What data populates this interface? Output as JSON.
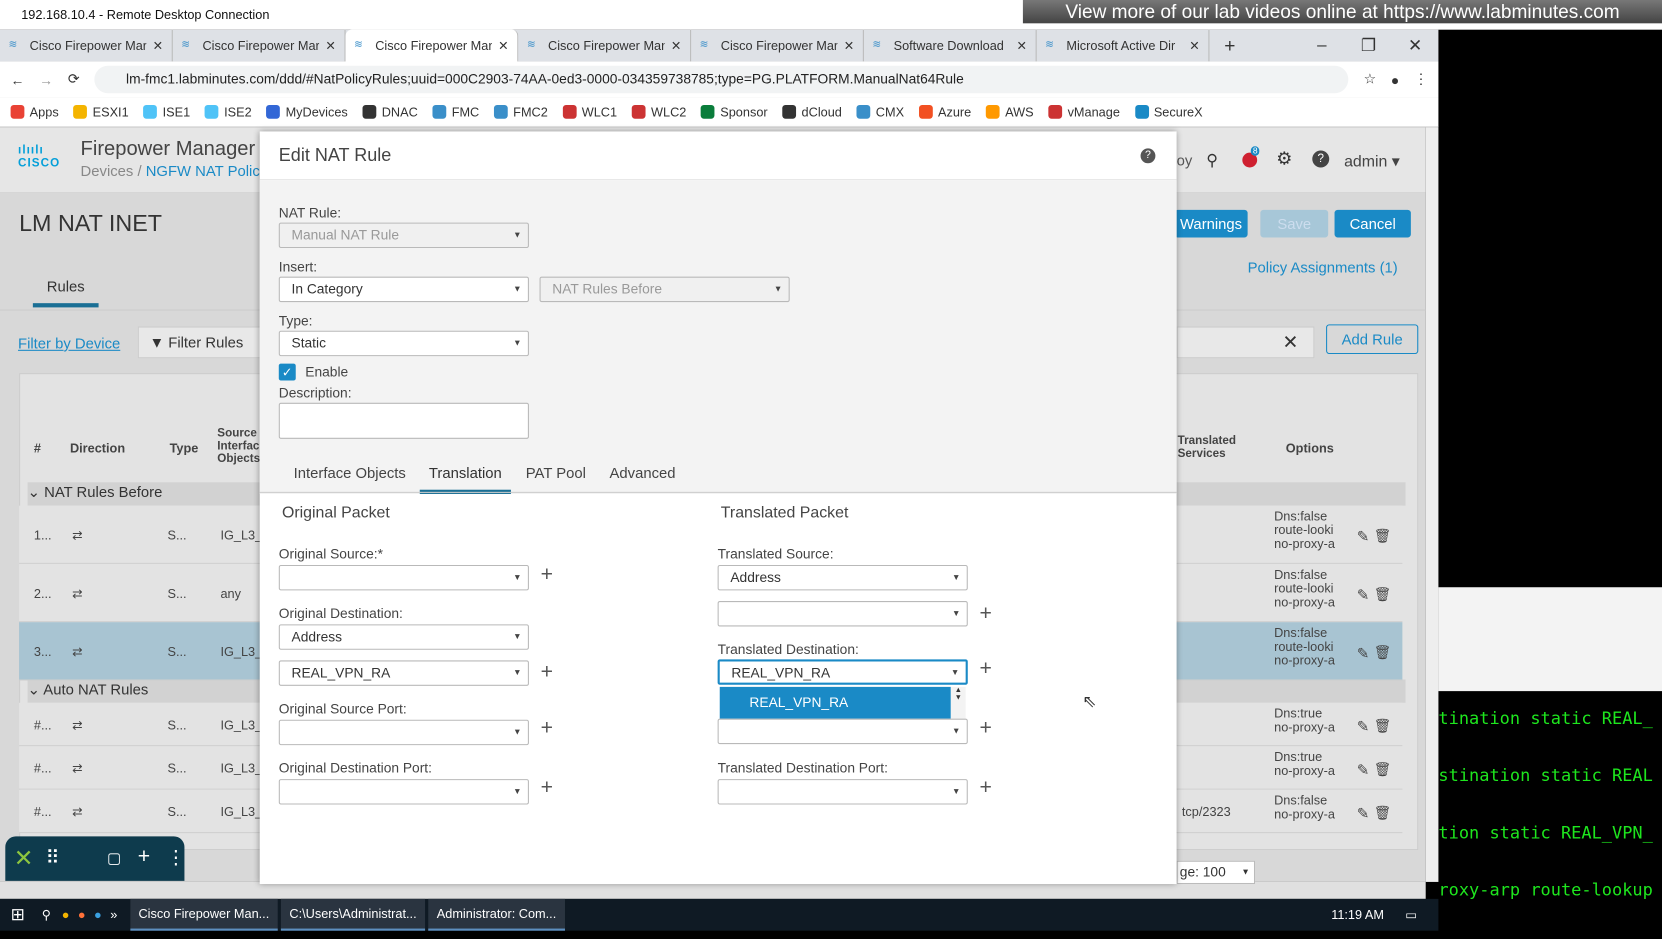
{
  "window": {
    "title": "192.168.10.4 - Remote Desktop Connection",
    "banner": "View more of our lab videos online at https://www.labminutes.com"
  },
  "browser": {
    "tabs": [
      {
        "label": "Cisco Firepower Mar"
      },
      {
        "label": "Cisco Firepower Mar"
      },
      {
        "label": "Cisco Firepower Mar",
        "active": true
      },
      {
        "label": "Cisco Firepower Mar"
      },
      {
        "label": "Cisco Firepower Mar"
      },
      {
        "label": "Software Download"
      },
      {
        "label": "Microsoft Active Dir"
      }
    ],
    "url": "lm-fmc1.labminutes.com/ddd/#NatPolicyRules;uuid=000C2903-74AA-0ed3-0000-034359738785;type=PG.PLATFORM.ManualNat64Rule",
    "bookmarks": [
      "Apps",
      "ESXI1",
      "ISE1",
      "ISE2",
      "MyDevices",
      "DNAC",
      "FMC",
      "FMC2",
      "WLC1",
      "WLC2",
      "Sponsor",
      "dCloud",
      "CMX",
      "Azure",
      "AWS",
      "vManage",
      "SecureX"
    ]
  },
  "fmc": {
    "brand": "cisco",
    "product": "Firepower Manager",
    "breadcrumb_root": "Devices /",
    "breadcrumb_page": "NGFW NAT Policy",
    "deploy_partial": "oy",
    "notif_count": "8",
    "user": "admin",
    "policy_name": "LM NAT INET",
    "tab_rules": "Rules",
    "filter_device": "Filter by Device",
    "filter_rules": "Filter Rules",
    "warnings": "Warnings",
    "save": "Save",
    "cancel": "Cancel",
    "policy_assignments": "Policy Assignments (1)",
    "add_rule": "Add Rule",
    "columns": {
      "num": "#",
      "direction": "Direction",
      "type": "Type",
      "src_intf": "Source Interface Objects",
      "trans_services": "Translated Services",
      "options": "Options"
    },
    "groups": {
      "before": "NAT Rules Before",
      "auto": "Auto NAT Rules"
    },
    "rows": [
      {
        "num": "1...",
        "type": "S...",
        "src": "IG_L3_",
        "svc": "",
        "opts": [
          "Dns:false",
          "route-looki",
          "no-proxy-a"
        ]
      },
      {
        "num": "2...",
        "type": "S...",
        "src": "any",
        "svc": "",
        "opts": [
          "Dns:false",
          "route-looki",
          "no-proxy-a"
        ]
      },
      {
        "num": "3...",
        "type": "S...",
        "src": "IG_L3_",
        "svc": "",
        "opts": [
          "Dns:false",
          "route-looki",
          "no-proxy-a"
        ],
        "selected": true
      },
      {
        "num": "#...",
        "type": "S...",
        "src": "IG_L3_",
        "svc": "",
        "opts": [
          "Dns:true",
          "no-proxy-a"
        ]
      },
      {
        "num": "#...",
        "type": "S...",
        "src": "IG_L3_",
        "svc": "",
        "opts": [
          "Dns:true",
          "no-proxy-a"
        ]
      },
      {
        "num": "#...",
        "type": "S...",
        "src": "IG_L3_",
        "svc": "tcp/2323",
        "opts": [
          "Dns:false",
          "no-proxy-a"
        ]
      }
    ],
    "page_size": "ge: 100"
  },
  "modal": {
    "title": "Edit NAT Rule",
    "nat_rule_label": "NAT Rule:",
    "nat_rule_value": "Manual NAT Rule",
    "insert_label": "Insert:",
    "insert_value": "In Category",
    "insert_pos": "NAT Rules Before",
    "type_label": "Type:",
    "type_value": "Static",
    "enable_label": "Enable",
    "enabled": true,
    "description_label": "Description:",
    "description_value": "",
    "tabs": [
      "Interface Objects",
      "Translation",
      "PAT Pool",
      "Advanced"
    ],
    "active_tab": "Translation",
    "original": {
      "heading": "Original Packet",
      "src_label": "Original Source:*",
      "src_value": "",
      "dst_label": "Original Destination:",
      "dst_type": "Address",
      "dst_value": "REAL_VPN_RA",
      "sport_label": "Original Source Port:",
      "sport_value": "",
      "dport_label": "Original Destination Port:",
      "dport_value": ""
    },
    "translated": {
      "heading": "Translated Packet",
      "src_label": "Translated Source:",
      "src_type": "Address",
      "src_value": "",
      "dst_label": "Translated Destination:",
      "dst_value": "REAL_VPN_RA",
      "dst_suggestion": "REAL_VPN_RA",
      "sport_value": "",
      "dport_label": "Translated Destination Port:",
      "dport_value": ""
    }
  },
  "terminal": {
    "lines": [
      "tination static REAL_",
      "stination static REAL",
      "tion static REAL_VPN_",
      "roxy-arp route-lookup"
    ]
  },
  "taskbar": {
    "items": [
      "Cisco Firepower Man...",
      "C:\\Users\\Administrat...",
      "Administrator: Com..."
    ],
    "time": "11:19 AM"
  }
}
